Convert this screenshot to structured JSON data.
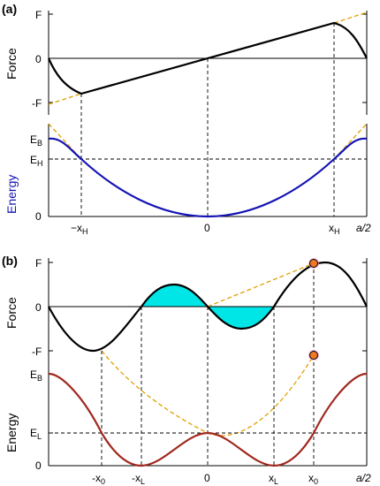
{
  "panel_a": {
    "tag": "(a)",
    "force_axis": "Force",
    "energy_axis": "Energy",
    "force_ticks": {
      "top": "F",
      "mid": "0",
      "bottom": "-F"
    },
    "energy_ticks": {
      "eb_base": "E",
      "eb_sub": "B",
      "eh_base": "E",
      "eh_sub": "H",
      "zero": "0"
    },
    "x_ticks": {
      "neg_xh_base": "−x",
      "neg_xh_sub": "H",
      "zero": "0",
      "xh_base": "x",
      "xh_sub": "H",
      "end": "a/2"
    }
  },
  "panel_b": {
    "tag": "(b)",
    "force_axis": "Force",
    "energy_axis": "Energy",
    "force_ticks": {
      "top": "F",
      "mid": "0",
      "bottom": "-F"
    },
    "energy_ticks": {
      "eb_base": "E",
      "eb_sub": "B",
      "el_base": "E",
      "el_sub": "L",
      "zero": "0"
    },
    "x_ticks": {
      "neg_x0_base": "-x",
      "neg_x0_sub": "0",
      "neg_xl_base": "-x",
      "neg_xl_sub": "L",
      "zero": "0",
      "xl_base": "x",
      "xl_sub": "L",
      "x0_base": "x",
      "x0_sub": "0",
      "end": "a/2"
    }
  },
  "colors": {
    "force_curve": "#000000",
    "energy_a": "#1414b4",
    "energy_b": "#a0281e",
    "dashed_guide": "#e0a000",
    "fill": "#00e5e5",
    "marker_fill": "#f07820",
    "marker_halo": "#f5a0d0"
  }
}
